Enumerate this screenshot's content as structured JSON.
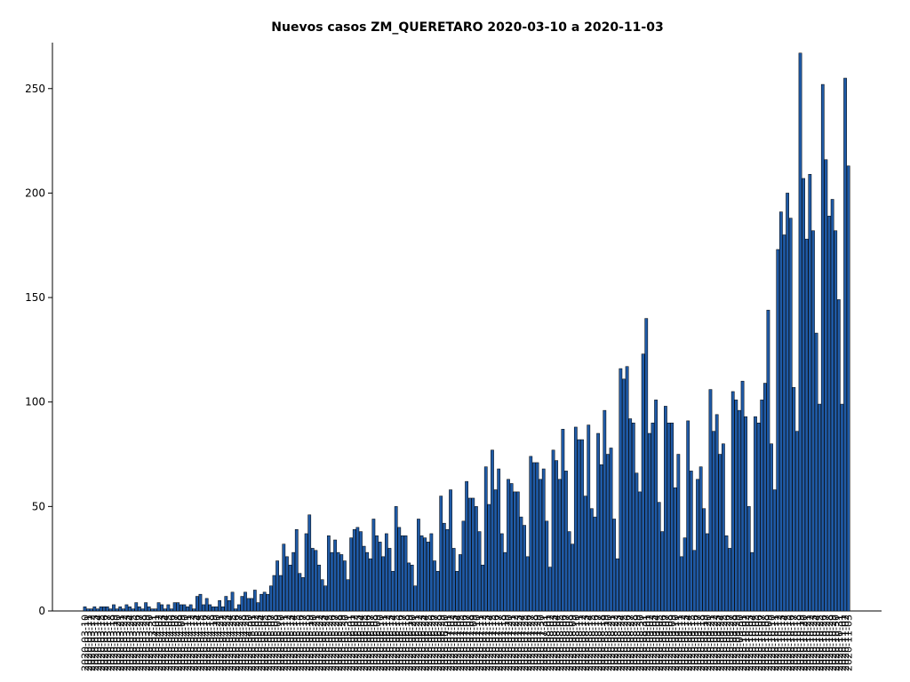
{
  "chart_data": {
    "type": "bar",
    "title": "Nuevos casos ZM_QUERETARO 2020-03-10 a 2020-11-03",
    "categories": [
      "2020-03-10",
      "2020-03-11",
      "2020-03-12",
      "2020-03-13",
      "2020-03-14",
      "2020-03-15",
      "2020-03-16",
      "2020-03-17",
      "2020-03-18",
      "2020-03-19",
      "2020-03-20",
      "2020-03-21",
      "2020-03-22",
      "2020-03-23",
      "2020-03-24",
      "2020-03-25",
      "2020-03-26",
      "2020-03-27",
      "2020-03-28",
      "2020-03-29",
      "2020-03-30",
      "2020-03-31",
      "2020-04-01",
      "2020-04-02",
      "2020-04-03",
      "2020-04-04",
      "2020-04-05",
      "2020-04-06",
      "2020-04-07",
      "2020-04-08",
      "2020-04-09",
      "2020-04-10",
      "2020-04-11",
      "2020-04-12",
      "2020-04-13",
      "2020-04-14",
      "2020-04-15",
      "2020-04-16",
      "2020-04-17",
      "2020-04-18",
      "2020-04-19",
      "2020-04-20",
      "2020-04-21",
      "2020-04-22",
      "2020-04-23",
      "2020-04-24",
      "2020-04-25",
      "2020-04-26",
      "2020-04-27",
      "2020-04-28",
      "2020-04-29",
      "2020-04-30",
      "2020-05-01",
      "2020-05-02",
      "2020-05-03",
      "2020-05-04",
      "2020-05-05",
      "2020-05-06",
      "2020-05-07",
      "2020-05-08",
      "2020-05-09",
      "2020-05-10",
      "2020-05-11",
      "2020-05-12",
      "2020-05-13",
      "2020-05-14",
      "2020-05-15",
      "2020-05-16",
      "2020-05-17",
      "2020-05-18",
      "2020-05-19",
      "2020-05-20",
      "2020-05-21",
      "2020-05-22",
      "2020-05-23",
      "2020-05-24",
      "2020-05-25",
      "2020-05-26",
      "2020-05-27",
      "2020-05-28",
      "2020-05-29",
      "2020-05-30",
      "2020-05-31",
      "2020-06-01",
      "2020-06-02",
      "2020-06-03",
      "2020-06-04",
      "2020-06-05",
      "2020-06-06",
      "2020-06-07",
      "2020-06-08",
      "2020-06-09",
      "2020-06-10",
      "2020-06-11",
      "2020-06-12",
      "2020-06-13",
      "2020-06-14",
      "2020-06-15",
      "2020-06-16",
      "2020-06-17",
      "2020-06-18",
      "2020-06-19",
      "2020-06-20",
      "2020-06-21",
      "2020-06-22",
      "2020-06-23",
      "2020-06-24",
      "2020-06-25",
      "2020-06-26",
      "2020-06-27",
      "2020-06-28",
      "2020-06-29",
      "2020-06-30",
      "2020-07-01",
      "2020-07-02",
      "2020-07-03",
      "2020-07-04",
      "2020-07-05",
      "2020-07-06",
      "2020-07-07",
      "2020-07-08",
      "2020-07-09",
      "2020-07-10",
      "2020-07-11",
      "2020-07-12",
      "2020-07-13",
      "2020-07-14",
      "2020-07-15",
      "2020-07-16",
      "2020-07-17",
      "2020-07-18",
      "2020-07-19",
      "2020-07-20",
      "2020-07-21",
      "2020-07-22",
      "2020-07-23",
      "2020-07-24",
      "2020-07-25",
      "2020-07-26",
      "2020-07-27",
      "2020-07-28",
      "2020-07-29",
      "2020-07-30",
      "2020-07-31",
      "2020-08-01",
      "2020-08-02",
      "2020-08-03",
      "2020-08-04",
      "2020-08-05",
      "2020-08-06",
      "2020-08-07",
      "2020-08-08",
      "2020-08-09",
      "2020-08-10",
      "2020-08-11",
      "2020-08-12",
      "2020-08-13",
      "2020-08-14",
      "2020-08-15",
      "2020-08-16",
      "2020-08-17",
      "2020-08-18",
      "2020-08-19",
      "2020-08-20",
      "2020-08-21",
      "2020-08-22",
      "2020-08-23",
      "2020-08-24",
      "2020-08-25",
      "2020-08-26",
      "2020-08-27",
      "2020-08-28",
      "2020-08-29",
      "2020-08-30",
      "2020-08-31",
      "2020-09-01",
      "2020-09-02",
      "2020-09-03",
      "2020-09-04",
      "2020-09-05",
      "2020-09-06",
      "2020-09-07",
      "2020-09-08",
      "2020-09-09",
      "2020-09-10",
      "2020-09-11",
      "2020-09-12",
      "2020-09-13",
      "2020-09-14",
      "2020-09-15",
      "2020-09-16",
      "2020-09-17",
      "2020-09-18",
      "2020-09-19",
      "2020-09-20",
      "2020-09-21",
      "2020-09-22",
      "2020-09-23",
      "2020-09-24",
      "2020-09-25",
      "2020-09-26",
      "2020-09-27",
      "2020-09-28",
      "2020-09-29",
      "2020-09-30",
      "2020-10-01",
      "2020-10-02",
      "2020-10-03",
      "2020-10-04",
      "2020-10-05",
      "2020-10-06",
      "2020-10-07",
      "2020-10-08",
      "2020-10-09",
      "2020-10-10",
      "2020-10-11",
      "2020-10-12",
      "2020-10-13",
      "2020-10-14",
      "2020-10-15",
      "2020-10-16",
      "2020-10-17",
      "2020-10-18",
      "2020-10-19",
      "2020-10-20",
      "2020-10-21",
      "2020-10-22",
      "2020-10-23",
      "2020-10-24",
      "2020-10-25",
      "2020-10-26",
      "2020-10-27",
      "2020-10-28",
      "2020-10-29",
      "2020-10-30",
      "2020-10-31",
      "2020-11-01",
      "2020-11-02",
      "2020-11-03"
    ],
    "values": [
      2,
      1,
      1,
      2,
      1,
      2,
      2,
      2,
      1,
      3,
      1,
      2,
      1,
      3,
      2,
      1,
      4,
      2,
      1,
      4,
      2,
      1,
      1,
      4,
      3,
      1,
      3,
      1,
      4,
      4,
      3,
      3,
      2,
      3,
      1,
      7,
      8,
      3,
      6,
      3,
      2,
      2,
      5,
      2,
      7,
      5,
      9,
      1,
      3,
      7,
      9,
      6,
      6,
      10,
      4,
      8,
      9,
      8,
      12,
      17,
      24,
      17,
      32,
      26,
      22,
      28,
      39,
      18,
      16,
      37,
      46,
      30,
      29,
      22,
      15,
      12,
      36,
      28,
      34,
      28,
      27,
      24,
      15,
      35,
      39,
      40,
      38,
      31,
      28,
      25,
      44,
      36,
      33,
      26,
      37,
      30,
      19,
      50,
      40,
      36,
      36,
      23,
      22,
      12,
      44,
      36,
      35,
      33,
      37,
      24,
      19,
      55,
      42,
      39,
      58,
      30,
      19,
      27,
      43,
      62,
      54,
      54,
      50,
      38,
      22,
      69,
      51,
      77,
      58,
      68,
      37,
      28,
      63,
      61,
      57,
      57,
      45,
      41,
      26,
      74,
      71,
      71,
      63,
      68,
      43,
      21,
      77,
      72,
      63,
      87,
      67,
      38,
      32,
      88,
      82,
      82,
      55,
      89,
      49,
      45,
      85,
      70,
      96,
      75,
      78,
      44,
      25,
      116,
      111,
      117,
      92,
      90,
      66,
      57,
      123,
      140,
      85,
      90,
      101,
      52,
      38,
      98,
      90,
      90,
      59,
      75,
      26,
      35,
      91,
      67,
      29,
      63,
      69,
      49,
      37,
      106,
      86,
      94,
      75,
      80,
      36,
      30,
      105,
      101,
      96,
      110,
      93,
      50,
      28,
      93,
      90,
      101,
      109,
      144,
      80,
      58,
      173,
      191,
      180,
      200,
      188,
      107,
      86,
      267,
      207,
      178,
      209,
      182,
      133,
      99,
      252,
      216,
      189,
      197,
      182,
      149,
      99,
      255,
      213
    ],
    "color": "#1f5aa6",
    "ylim": [
      0,
      272
    ],
    "yticks": [
      0,
      50,
      100,
      150,
      200,
      250
    ]
  }
}
